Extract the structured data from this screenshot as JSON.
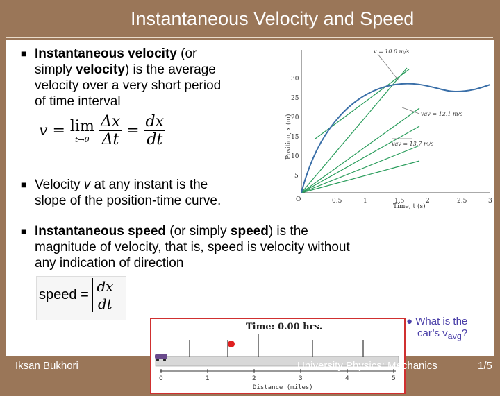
{
  "header": {
    "title": "Instantaneous Velocity and Speed"
  },
  "bullets": {
    "b1": {
      "bold_1": "Instantaneous velocity",
      "text_1": " (or",
      "text_2": "simply ",
      "bold_2": "velocity",
      "text_3": ") is the average",
      "line3": "velocity over a very short period",
      "line4": "of time interval"
    },
    "b2": {
      "text_1": "Velocity ",
      "var": "v",
      "text_2": " at any instant is the",
      "line2": "slope of the position-time curve."
    },
    "b3": {
      "bold_1": "Instantaneous speed",
      "text_1": " (or simply ",
      "bold_2": "speed",
      "text_2": ") is the",
      "line2": "magnitude of velocity, that is, speed is velocity without",
      "line3": "any indication of direction"
    }
  },
  "formula_v": {
    "lhs": "v",
    "eq1": "=",
    "lim": "lim",
    "sub": "t→0",
    "num1": "Δx",
    "den1": "Δt",
    "eq2": "=",
    "num2": "dx",
    "den2": "dt"
  },
  "formula_speed": {
    "lhs": "speed",
    "eq": "=",
    "num": "dx",
    "den": "dt"
  },
  "graph": {
    "ylabel": "Position, x (m)",
    "xlabel": "Time, t (s)",
    "ann_top": "v = 10.0 m/s",
    "ann_mid": "vav = 12.1 m/s",
    "ann_low": "vav = 13.7 m/s",
    "origin": "O",
    "xticks": [
      "0.5",
      "1",
      "1.5",
      "2",
      "2.5",
      "3"
    ],
    "yticks": [
      "5",
      "10",
      "15",
      "20",
      "25",
      "30"
    ]
  },
  "animation": {
    "time_label": "Time: 0.00 hrs.",
    "axis_label": "Distance (miles)",
    "ticks": [
      "0",
      "1",
      "2",
      "3",
      "4",
      "5"
    ]
  },
  "question": {
    "line1": "What is the",
    "line2a": "car’s v",
    "line2sub": "avg",
    "line2b": "?"
  },
  "footer": {
    "author": "Iksan Bukhori",
    "course": "University Physics: Mechanics",
    "page": "1/5"
  },
  "colors": {
    "background": "#9a7658",
    "curve": "#3a6fa8",
    "tangent": "#2a9d5c",
    "question": "#4a3fa8"
  }
}
